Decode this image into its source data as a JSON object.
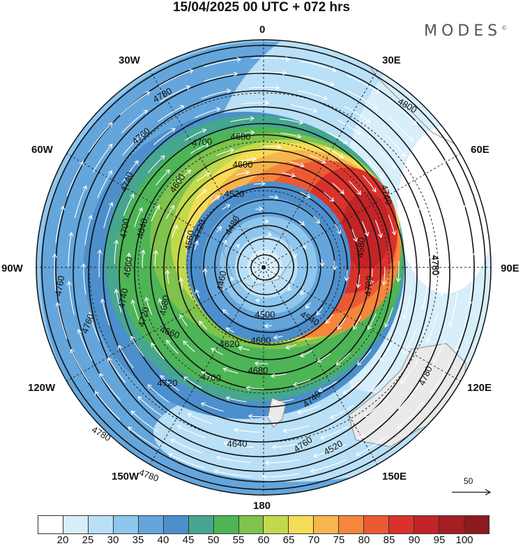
{
  "title": "15/04/2025  00 UTC  + 072 hrs",
  "brand": "MODES",
  "brand_mark": "©",
  "longitude_labels": {
    "n": "0",
    "ne30": "30E",
    "ne60": "60E",
    "e": "90E",
    "se120": "120E",
    "se150": "150E",
    "s": "180",
    "sw150": "150W",
    "sw120": "120W",
    "w": "90W",
    "nw60": "60W",
    "nw30": "30W"
  },
  "vector_reference": "50",
  "colorbar": {
    "colors": [
      "#ffffff",
      "#d7eefb",
      "#b9e0f7",
      "#8fc6ee",
      "#64a6dc",
      "#4c8fcc",
      "#46a68f",
      "#4db556",
      "#7fc24c",
      "#c3d94c",
      "#f5dc56",
      "#f7b54e",
      "#f5863c",
      "#ec5a34",
      "#d9322c",
      "#c22427",
      "#a71d24",
      "#8c1a1e"
    ],
    "ticks": [
      "20",
      "25",
      "30",
      "35",
      "40",
      "45",
      "50",
      "55",
      "60",
      "65",
      "70",
      "75",
      "80",
      "85",
      "90",
      "95",
      "100"
    ]
  },
  "map_colors": {
    "land": "#e9e9e9",
    "coast": "#8a8a8a",
    "contour": "#111111",
    "grid": "#222222",
    "wind_vector": "#ffffff"
  },
  "contour_labels": [
    {
      "text": "4780"
    },
    {
      "text": "4800"
    },
    {
      "text": "4760"
    },
    {
      "text": "4700"
    },
    {
      "text": "4680"
    },
    {
      "text": "4600"
    },
    {
      "text": "4740"
    },
    {
      "text": "4740"
    },
    {
      "text": "4760"
    },
    {
      "text": "4780"
    },
    {
      "text": "4700"
    },
    {
      "text": "4640"
    },
    {
      "text": "4600"
    },
    {
      "text": "4520"
    },
    {
      "text": "4560"
    },
    {
      "text": "4480"
    },
    {
      "text": "4460"
    },
    {
      "text": "4500"
    },
    {
      "text": "4540"
    },
    {
      "text": "4580"
    },
    {
      "text": "4600"
    },
    {
      "text": "4620"
    },
    {
      "text": "4660"
    },
    {
      "text": "4680"
    },
    {
      "text": "4720"
    },
    {
      "text": "4740"
    },
    {
      "text": "4760"
    },
    {
      "text": "4780"
    },
    {
      "text": "4720"
    },
    {
      "text": "4700"
    },
    {
      "text": "4720"
    },
    {
      "text": "4740"
    },
    {
      "text": "4760"
    },
    {
      "text": "4780"
    },
    {
      "text": "4780"
    },
    {
      "text": "4780"
    },
    {
      "text": "4680"
    },
    {
      "text": "4700"
    },
    {
      "text": "4640"
    },
    {
      "text": "4520"
    },
    {
      "text": "4660"
    }
  ]
}
